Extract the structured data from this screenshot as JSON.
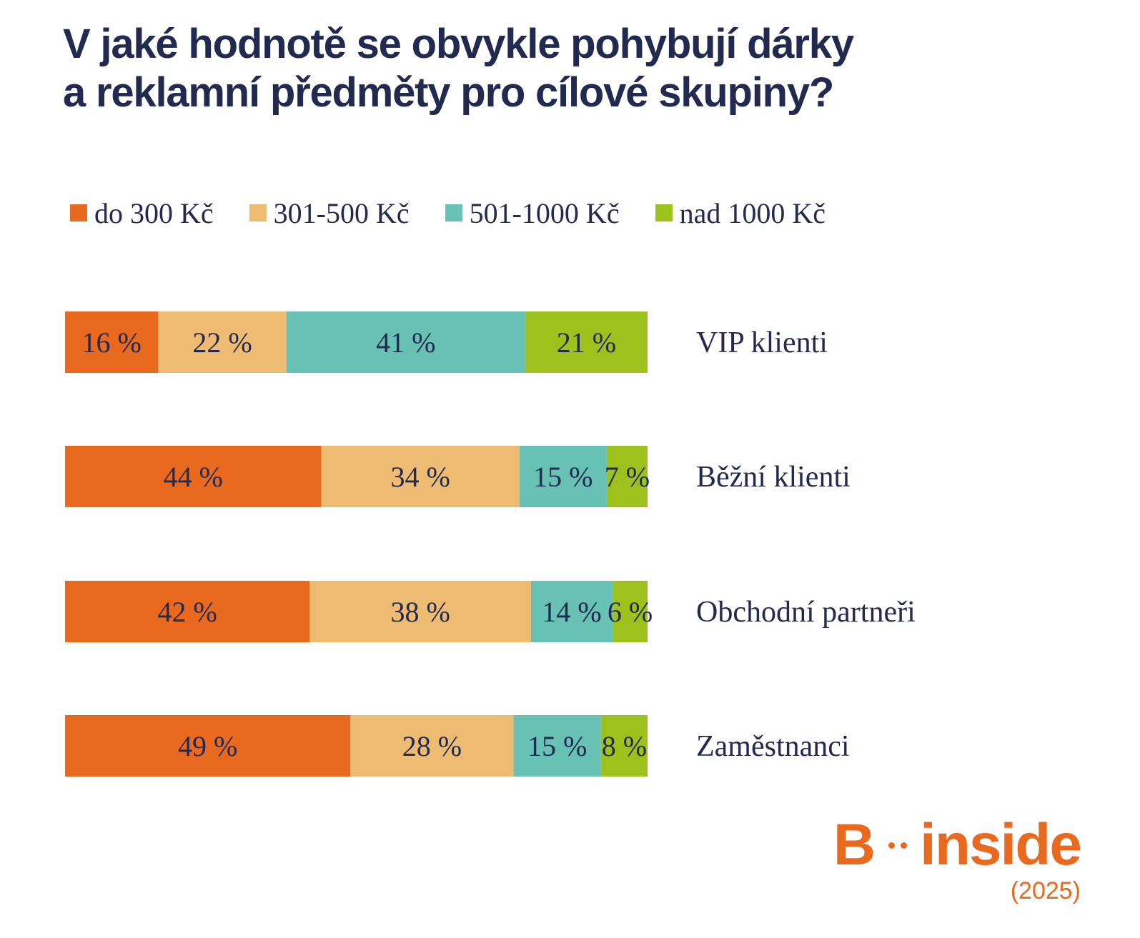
{
  "header": {
    "title_line1": "V jaké hodnotě se obvykle pohybují dárky",
    "title_line2": "a reklamní předměty pro cílové skupiny?"
  },
  "legend": [
    {
      "label": "do 300 Kč",
      "color": "#e9691f"
    },
    {
      "label": "301-500 Kč",
      "color": "#edbb72"
    },
    {
      "label": "501-1000 Kč",
      "color": "#68c1b5"
    },
    {
      "label": "nad 1000 Kč",
      "color": "#9dc21c"
    }
  ],
  "chart_data": {
    "type": "bar",
    "orientation": "horizontal",
    "stacked": true,
    "categories": [
      "VIP klienti",
      "Běžní klienti",
      "Obchodní partneři",
      "Zaměstnanci"
    ],
    "series": [
      {
        "name": "do 300 Kč",
        "color": "#e9691f",
        "values": [
          16,
          44,
          42,
          49
        ],
        "labels": [
          "16 %",
          "44 %",
          "42 %",
          "49 %"
        ]
      },
      {
        "name": "301-500 Kč",
        "color": "#edbb72",
        "values": [
          22,
          34,
          38,
          28
        ],
        "labels": [
          "22 %",
          "34 %",
          "38 %",
          "28 %"
        ]
      },
      {
        "name": "501-1000 Kč",
        "color": "#68c1b5",
        "values": [
          41,
          15,
          14,
          15
        ],
        "labels": [
          "41 %",
          "15 %",
          "14 %",
          "15 %"
        ]
      },
      {
        "name": "nad 1000 Kč",
        "color": "#9dc21c",
        "values": [
          21,
          7,
          6,
          8
        ],
        "labels": [
          "21 %",
          "7 %",
          "6 %",
          "8 %"
        ]
      }
    ],
    "xlim": [
      0,
      100
    ],
    "unit": "%",
    "grid": false,
    "legend_position": "top"
  },
  "logo": {
    "text_left": "B",
    "text_right": "inside",
    "year": "(2025)"
  }
}
